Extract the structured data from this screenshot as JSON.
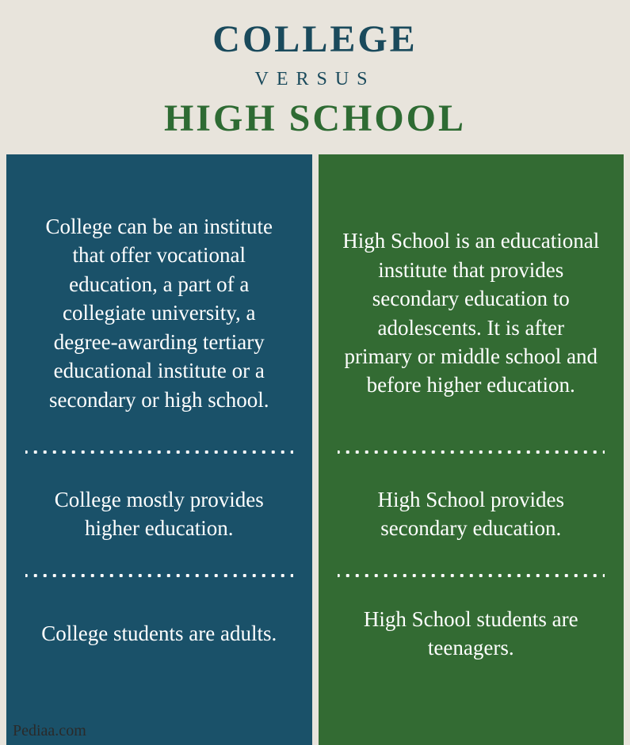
{
  "header": {
    "title_top": "COLLEGE",
    "versus": "VERSUS",
    "title_bottom": "HIGH SCHOOL",
    "top_color": "#1a4a5c",
    "versus_color": "#1a4a5c",
    "bottom_color": "#2e6b33"
  },
  "columns": {
    "left": {
      "bg_color": "#1a5169",
      "rows": [
        "College can be an institute that offer vocational education, a part of a collegiate university, a degree-awarding tertiary educational institute or a secondary or high school.",
        "College mostly provides higher education.",
        "College students are adults."
      ]
    },
    "right": {
      "bg_color": "#336b33",
      "rows": [
        "High School is an educational institute that provides secondary education to adolescents. It is after primary or middle school and before higher education.",
        "High School provides secondary education.",
        "High School students are teenagers."
      ]
    }
  },
  "footer": {
    "source": "Pediaa.com"
  },
  "background_color": "#e8e4dc",
  "text_color": "#ffffff"
}
